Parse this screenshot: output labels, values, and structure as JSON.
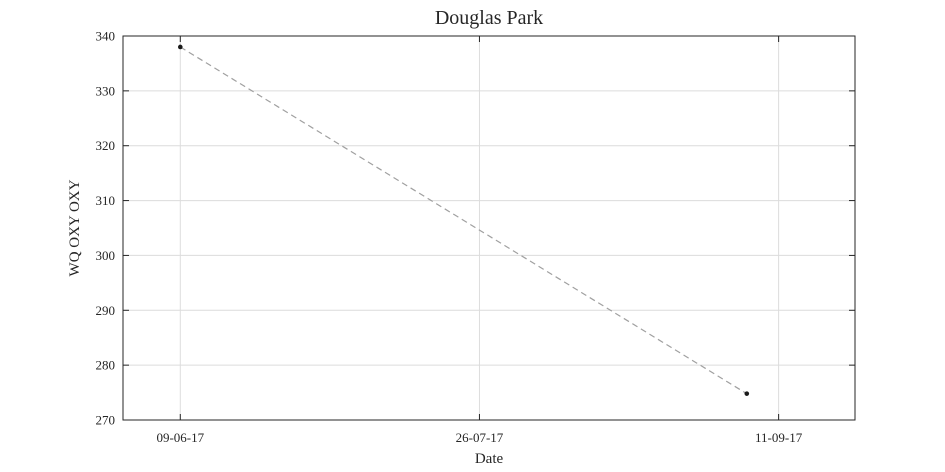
{
  "chart_data": {
    "type": "line",
    "title": "Douglas Park",
    "xlabel": "Date",
    "ylabel": "WQ OXY OXY",
    "xlim": [
      "2017-05-31",
      "2017-09-23"
    ],
    "ylim": [
      270,
      340
    ],
    "x_ticks": [
      {
        "date": "2017-06-09",
        "label": "09-06-17"
      },
      {
        "date": "2017-07-26",
        "label": "26-07-17"
      },
      {
        "date": "2017-09-11",
        "label": "11-09-17"
      }
    ],
    "y_ticks": [
      270,
      280,
      290,
      300,
      310,
      320,
      330,
      340
    ],
    "grid": true,
    "series": [
      {
        "points": [
          {
            "x": "2017-06-09",
            "y": 338
          },
          {
            "x": "2017-09-06",
            "y": 274.8
          }
        ],
        "line_style": "dashed",
        "line_color": "#a0a0a0",
        "marker_color": "#1a1a1a"
      }
    ]
  }
}
